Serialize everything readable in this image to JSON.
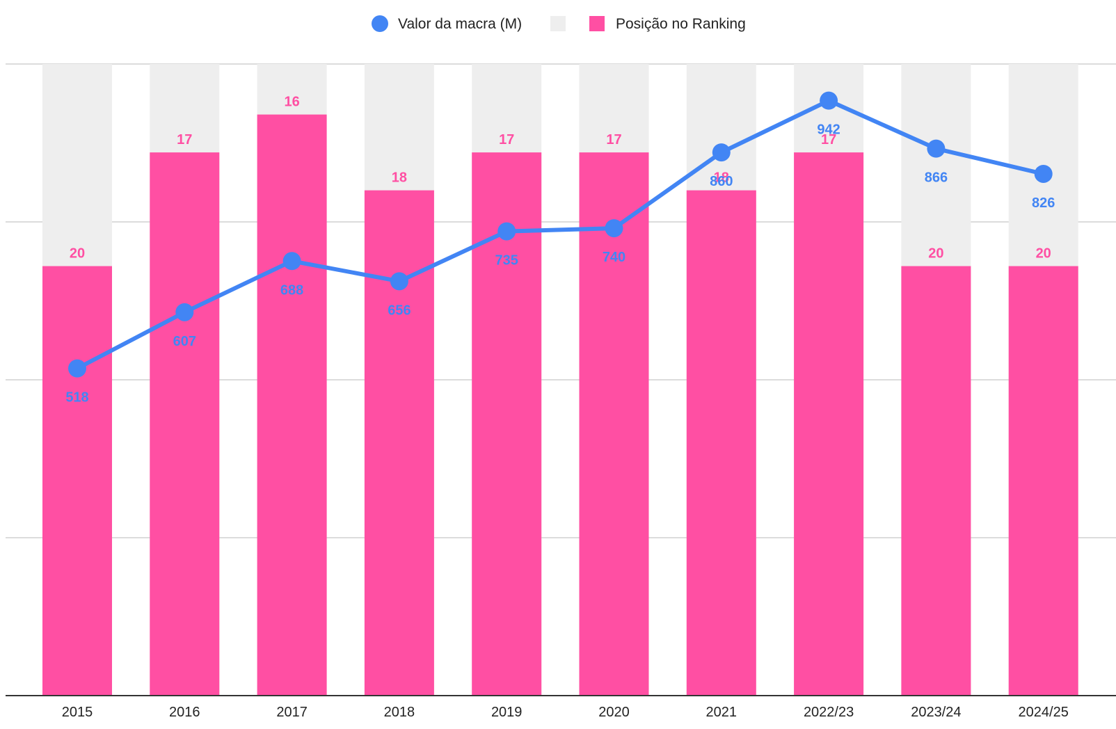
{
  "chart_data": {
    "type": "bar+line",
    "title": "",
    "xlabel": "",
    "ylabel": "",
    "categories": [
      "2015",
      "2016",
      "2017",
      "2018",
      "2019",
      "2020",
      "2021",
      "2022/23",
      "2023/24",
      "2024/25"
    ],
    "legend": {
      "position": "top-center",
      "items": [
        {
          "label": "Valor da macra (M)",
          "marker": "circle",
          "color": "#4285F4"
        },
        {
          "label": "",
          "marker": "square",
          "color": "#EEEEEE"
        },
        {
          "label": "Posição no Ranking",
          "marker": "square",
          "color": "#FF4FA3"
        }
      ]
    },
    "series": [
      {
        "name": "Valor da macra (M)",
        "type": "line",
        "color": "#4285F4",
        "values": [
          518,
          607,
          688,
          656,
          735,
          740,
          860,
          942,
          866,
          826
        ],
        "ylim": [
          0,
          1000
        ]
      },
      {
        "name": "",
        "type": "bar-background",
        "color": "#EEEEEE",
        "values": [
          50,
          50,
          50,
          50,
          50,
          50,
          50,
          50,
          50,
          50
        ]
      },
      {
        "name": "Posição no Ranking",
        "type": "bar",
        "color": "#FF4FA3",
        "values": [
          20,
          17,
          16,
          18,
          17,
          17,
          18,
          17,
          20,
          20
        ],
        "ylim": [
          0,
          25
        ]
      }
    ],
    "grid": true
  }
}
